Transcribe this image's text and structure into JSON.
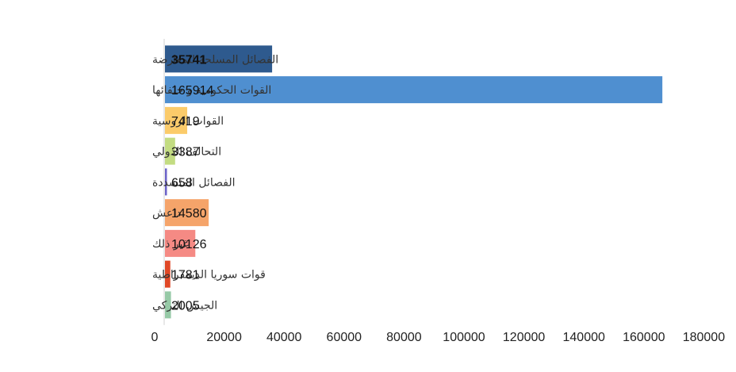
{
  "chart_data": {
    "type": "bar",
    "orientation": "horizontal",
    "title": "",
    "xlabel": "",
    "ylabel": "",
    "categories": [
      "الفصائل المسلحة للمعارضة",
      "القوات الحكومية و حلفائها",
      "القوات الروسية",
      "التحالف الدولي",
      "الفصائل المتشددة",
      "داعش",
      "غير ذلك",
      "قوات سوريا الديمقراطية",
      "الجيش التركي"
    ],
    "values": [
      35741,
      165914,
      7419,
      3387,
      658,
      14580,
      10126,
      1781,
      2005
    ],
    "data_labels": [
      "35741",
      "165914",
      "7419",
      "3387",
      "658",
      "14580",
      "10126",
      "1781",
      "2005"
    ],
    "colors": [
      "#2e5a8e",
      "#4f8fd0",
      "#fbcb6a",
      "#c3dc82",
      "#6c63c9",
      "#f5a46a",
      "#f58a84",
      "#e04826",
      "#96c9a6"
    ],
    "xlim": [
      0,
      180000
    ],
    "xticks": [
      0,
      20000,
      40000,
      60000,
      80000,
      100000,
      120000,
      140000,
      160000,
      180000
    ],
    "xtick_labels": [
      "0",
      "20000",
      "40000",
      "60000",
      "80000",
      "100000",
      "120000",
      "140000",
      "160000",
      "180000"
    ],
    "grid": false,
    "legend": "none"
  }
}
